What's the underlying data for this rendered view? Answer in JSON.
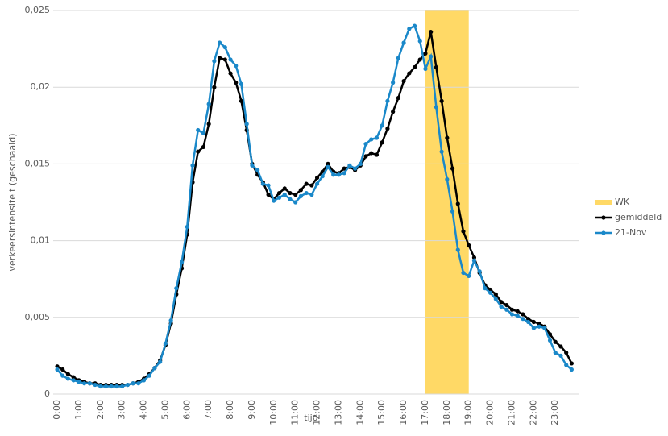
{
  "chart_data": {
    "type": "line",
    "ylabel": "verkeersintensiteit (geschaald)",
    "xlabel": "tijd",
    "categories": [
      "0:00",
      null,
      null,
      null,
      "1:00",
      null,
      null,
      null,
      "2:00",
      null,
      null,
      null,
      "3:00",
      null,
      null,
      null,
      "4:00",
      null,
      null,
      null,
      "5:00",
      null,
      null,
      null,
      "6:00",
      null,
      null,
      null,
      "7:00",
      null,
      null,
      null,
      "8:00",
      null,
      null,
      null,
      "9:00",
      null,
      null,
      null,
      "10:00",
      null,
      null,
      null,
      "11:00",
      null,
      null,
      null,
      "12:00",
      null,
      null,
      null,
      "13:00",
      null,
      null,
      null,
      "14:00",
      null,
      null,
      null,
      "15:00",
      null,
      null,
      null,
      "16:00",
      null,
      null,
      null,
      "17:00",
      null,
      null,
      null,
      "18:00",
      null,
      null,
      null,
      "19:00",
      null,
      null,
      null,
      "20:00",
      null,
      null,
      null,
      "21:00",
      null,
      null,
      null,
      "22:00",
      null,
      null,
      null,
      "23:00",
      null,
      null,
      null
    ],
    "bands": [
      {
        "name": "WK",
        "color": "#ffd966",
        "x": [
          "17:00",
          "19:00"
        ]
      }
    ],
    "series": [
      {
        "name": "gemiddeld",
        "color": "#000000",
        "values": [
          0.0018,
          0.0016,
          0.0013,
          0.0011,
          0.0009,
          0.0008,
          0.0007,
          0.0007,
          0.0006,
          0.0006,
          0.0006,
          0.0006,
          0.0006,
          0.0006,
          0.0007,
          0.0008,
          0.001,
          0.0013,
          0.0017,
          0.0022,
          0.0032,
          0.0046,
          0.0065,
          0.0082,
          0.0104,
          0.0138,
          0.0158,
          0.0161,
          0.0176,
          0.02,
          0.0219,
          0.0218,
          0.0209,
          0.0203,
          0.0191,
          0.0172,
          0.015,
          0.0143,
          0.0138,
          0.013,
          0.0127,
          0.0131,
          0.0134,
          0.0131,
          0.013,
          0.0133,
          0.0137,
          0.0136,
          0.0141,
          0.0145,
          0.015,
          0.0145,
          0.0144,
          0.0147,
          0.0148,
          0.0146,
          0.0149,
          0.0155,
          0.0157,
          0.0156,
          0.0164,
          0.0173,
          0.0184,
          0.0193,
          0.0204,
          0.0209,
          0.0213,
          0.0218,
          0.0222,
          0.0236,
          0.0213,
          0.0191,
          0.0167,
          0.0147,
          0.0124,
          0.0106,
          0.0097,
          0.0089,
          0.0079,
          0.0071,
          0.0068,
          0.0065,
          0.006,
          0.0058,
          0.0055,
          0.0054,
          0.0052,
          0.0049,
          0.0047,
          0.0046,
          0.0044,
          0.0039,
          0.0034,
          0.0031,
          0.0027,
          0.002
        ]
      },
      {
        "name": "21-Nov",
        "color": "#1a88c9",
        "values": [
          0.0016,
          0.0012,
          0.001,
          0.0009,
          0.0008,
          0.0007,
          0.0007,
          0.0006,
          0.0005,
          0.0005,
          0.0005,
          0.0005,
          0.0005,
          0.0006,
          0.0007,
          0.0007,
          0.0009,
          0.0012,
          0.0017,
          0.0021,
          0.0033,
          0.0048,
          0.0069,
          0.0086,
          0.0109,
          0.0149,
          0.0172,
          0.017,
          0.0189,
          0.0217,
          0.0229,
          0.0226,
          0.0218,
          0.0214,
          0.0202,
          0.0176,
          0.0149,
          0.0146,
          0.0137,
          0.0136,
          0.0126,
          0.0128,
          0.013,
          0.0127,
          0.0125,
          0.0129,
          0.0131,
          0.013,
          0.0137,
          0.0142,
          0.0148,
          0.0143,
          0.0143,
          0.0144,
          0.0149,
          0.0147,
          0.015,
          0.0163,
          0.0166,
          0.0167,
          0.0175,
          0.0191,
          0.0203,
          0.0219,
          0.0229,
          0.0238,
          0.024,
          0.023,
          0.0212,
          0.022,
          0.0187,
          0.0158,
          0.014,
          0.0119,
          0.0094,
          0.0079,
          0.0077,
          0.0087,
          0.008,
          0.0069,
          0.0066,
          0.0062,
          0.0057,
          0.0055,
          0.0052,
          0.0051,
          0.0049,
          0.0047,
          0.0043,
          0.0044,
          0.0043,
          0.0035,
          0.0027,
          0.0025,
          0.0019,
          0.0016
        ]
      }
    ],
    "ylim": [
      0,
      0.025
    ],
    "yticks": [
      0,
      {
        "value": 0.005,
        "label": "0,005"
      },
      {
        "value": 0.01,
        "label": "0,01"
      },
      {
        "value": 0.015,
        "label": "0,015"
      },
      {
        "value": 0.02,
        "label": "0,02"
      },
      {
        "value": 0.025,
        "label": "0,025"
      }
    ],
    "grid": true,
    "legend": "right"
  }
}
